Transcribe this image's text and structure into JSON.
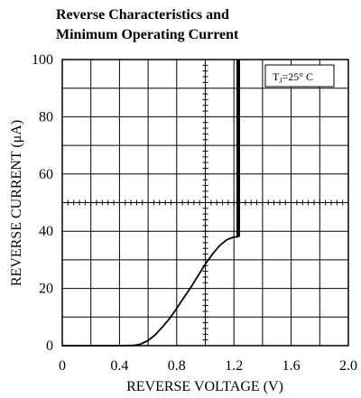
{
  "chart_data": {
    "type": "line",
    "title_lines": [
      "Reverse Characteristics and",
      "Minimum Operating Current"
    ],
    "xlabel": "REVERSE VOLTAGE (V)",
    "ylabel": "REVERSE CURRENT (μA)",
    "xlim": [
      0,
      2.0
    ],
    "ylim": [
      0,
      100
    ],
    "x_ticks": [
      "0",
      "0.4",
      "0.8",
      "1.2",
      "1.6",
      "2.0"
    ],
    "x_tick_values": [
      0,
      0.4,
      0.8,
      1.2,
      1.6,
      2.0
    ],
    "y_ticks": [
      "0",
      "20",
      "40",
      "60",
      "80",
      "100"
    ],
    "y_tick_values": [
      0,
      20,
      40,
      60,
      80,
      100
    ],
    "grid": true,
    "legend": "Tⱼ=25° C",
    "legend_main": "T",
    "legend_sub": "J",
    "legend_rest": "=25° C",
    "series": [
      {
        "x": [
          0,
          0.2,
          0.4,
          0.5,
          0.55,
          0.6,
          0.65,
          0.7,
          0.75,
          0.8,
          0.85,
          0.9,
          0.95,
          1.0,
          1.05,
          1.1,
          1.15,
          1.2,
          1.22,
          1.23,
          1.23
        ],
        "y": [
          0,
          0,
          0,
          0.1,
          0.6,
          1.8,
          3.8,
          6.5,
          9.5,
          13,
          16.8,
          20.5,
          24.5,
          28.5,
          32,
          35,
          37,
          38,
          38,
          38,
          100
        ]
      }
    ]
  }
}
